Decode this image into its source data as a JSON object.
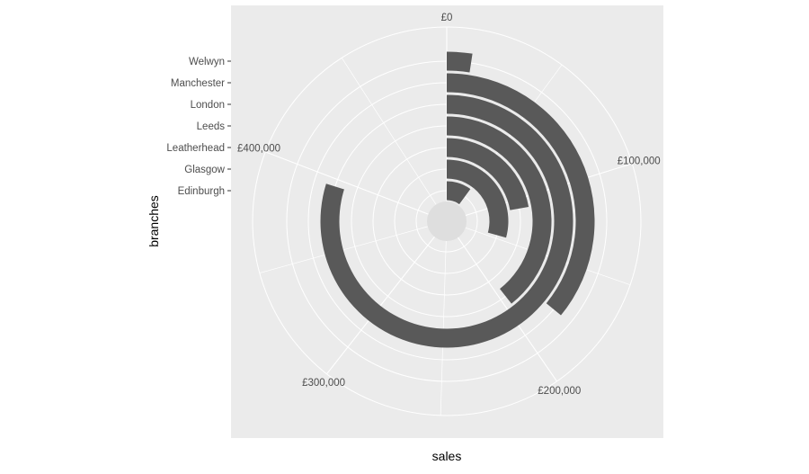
{
  "chart_data": {
    "type": "bar",
    "coord": "polar",
    "xlabel": "sales",
    "ylabel": "branches",
    "categories": [
      "Edinburgh",
      "Glasgow",
      "Leatherhead",
      "Leeds",
      "London",
      "Manchester",
      "Welwyn"
    ],
    "values": [
      50000,
      145000,
      110000,
      195000,
      395000,
      178000,
      12000
    ],
    "theta_ticks": [
      {
        "value": 0,
        "label": "£0"
      },
      {
        "value": 100000,
        "label": "£100,000"
      },
      {
        "value": 200000,
        "label": "£200,000"
      },
      {
        "value": 300000,
        "label": "£300,000"
      },
      {
        "value": 400000,
        "label": "£400,000"
      }
    ],
    "theta_max": 495000,
    "grid": true
  },
  "colors": {
    "panel": "#ebebeb",
    "grid": "#ffffff",
    "bar": "#595959",
    "text": "#4d4d4d"
  }
}
